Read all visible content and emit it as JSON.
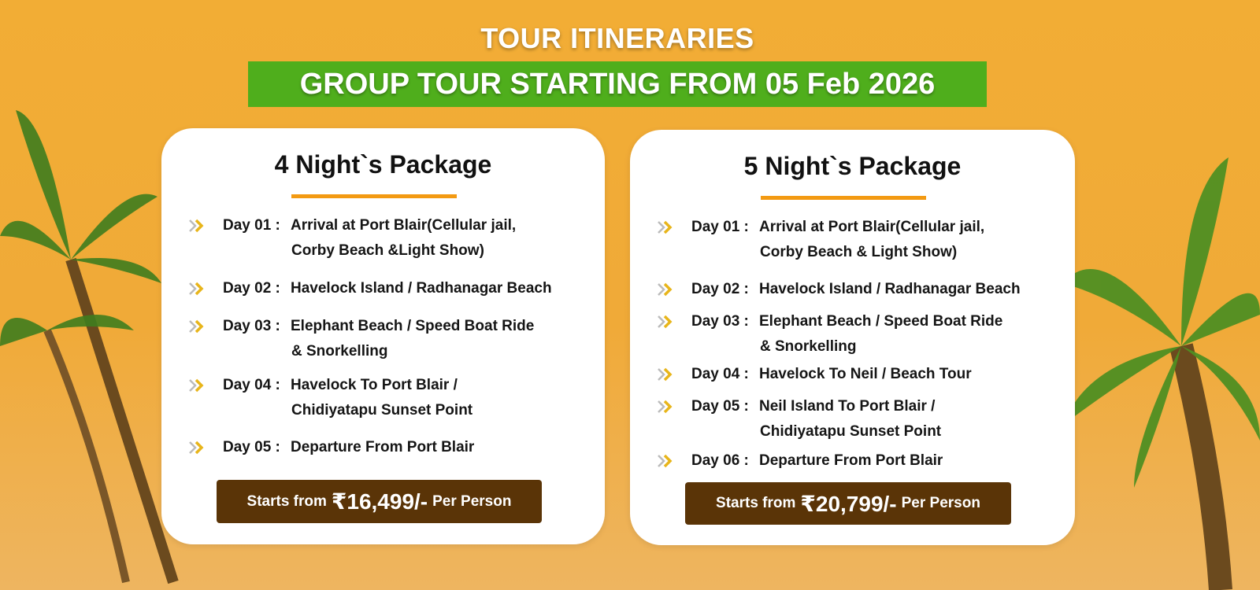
{
  "header": {
    "title": "TOUR ITINERARIES",
    "banner": "GROUP TOUR STARTING FROM 05 Feb 2026"
  },
  "colors": {
    "background": "#f0aa38",
    "banner": "#4fae1c",
    "underline": "#f39a12",
    "price_box": "#5a3407"
  },
  "packages": [
    {
      "title": "4 Night`s Package",
      "items": [
        {
          "day": "Day 01 :",
          "lines": [
            "Arrival at Port Blair(Cellular jail,",
            "Corby Beach &Light Show)"
          ]
        },
        {
          "day": "Day 02 :",
          "lines": [
            "Havelock Island / Radhanagar Beach"
          ]
        },
        {
          "day": "Day 03 :",
          "lines": [
            "Elephant Beach / Speed Boat Ride",
            "& Snorkelling"
          ]
        },
        {
          "day": "Day 04 :",
          "lines": [
            "Havelock To Port Blair /",
            "Chidiyatapu Sunset Point"
          ]
        },
        {
          "day": "Day 05 :",
          "lines": [
            "Departure From Port Blair"
          ]
        }
      ],
      "price": {
        "prefix": "Starts from",
        "amount": "₹16,499/-",
        "suffix": "Per Person"
      }
    },
    {
      "title": "5 Night`s Package",
      "items": [
        {
          "day": "Day 01 :",
          "lines": [
            "Arrival at Port Blair(Cellular jail,",
            "Corby Beach & Light Show)"
          ]
        },
        {
          "day": "Day 02 :",
          "lines": [
            "Havelock Island / Radhanagar Beach"
          ]
        },
        {
          "day": "Day 03 :",
          "lines": [
            "Elephant Beach / Speed Boat Ride",
            "& Snorkelling"
          ]
        },
        {
          "day": "Day 04 :",
          "lines": [
            "Havelock To Neil / Beach Tour"
          ]
        },
        {
          "day": "Day 05 :",
          "lines": [
            "Neil Island To Port Blair /",
            "Chidiyatapu Sunset Point"
          ]
        },
        {
          "day": "Day 06 :",
          "lines": [
            "Departure From Port Blair"
          ]
        }
      ],
      "price": {
        "prefix": "Starts from",
        "amount": "₹20,799/-",
        "suffix": "Per Person"
      }
    }
  ]
}
